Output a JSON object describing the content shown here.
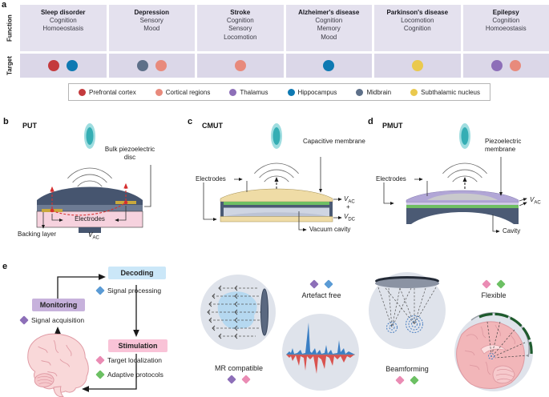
{
  "palette": {
    "prefrontal-cortex": "#c43a3d",
    "cortical-regions": "#e88a7c",
    "thalamus": "#8d6fb8",
    "hippocampus": "#0e79b2",
    "midbrain": "#5e7089",
    "subthalamic-nucleus": "#eac94e"
  },
  "panel_a": {
    "letter": "a",
    "row_labels": {
      "function": "Function",
      "target": "Target"
    },
    "columns": [
      {
        "disease": "Sleep disorder",
        "functions_text": "Cognition\nHomoeostasis",
        "targets": [
          "prefrontal-cortex",
          "hippocampus"
        ]
      },
      {
        "disease": "Depression",
        "functions_text": "Sensory\nMood",
        "targets": [
          "midbrain",
          "cortical-regions"
        ]
      },
      {
        "disease": "Stroke",
        "functions_text": "Cognition\nSensory\nLocomotion",
        "targets": [
          "cortical-regions"
        ]
      },
      {
        "disease": "Alzheimer's disease",
        "functions_text": "Cognition\nMemory\nMood",
        "targets": [
          "hippocampus"
        ]
      },
      {
        "disease": "Parkinson's disease",
        "functions_text": "Locomotion\nCognition",
        "targets": [
          "subthalamic-nucleus"
        ]
      },
      {
        "disease": "Epilepsy",
        "functions_text": "Cognition\nHomoeostasis",
        "targets": [
          "thalamus",
          "cortical-regions"
        ]
      }
    ],
    "legend": [
      {
        "label": "Prefrontal cortex",
        "color": "#c43a3d"
      },
      {
        "label": "Cortical regions",
        "color": "#e88a7c"
      },
      {
        "label": "Thalamus",
        "color": "#8d6fb8"
      },
      {
        "label": "Hippocampus",
        "color": "#0e79b2"
      },
      {
        "label": "Midbrain",
        "color": "#5e7089"
      },
      {
        "label": "Subthalamic nucleus",
        "color": "#eac94e"
      }
    ]
  },
  "panel_b": {
    "letter": "b",
    "title": "PUT",
    "disc_label": "Bulk piezoelectric disc",
    "electrodes_label": "Electrodes",
    "backing_label": "Backing layer",
    "voltage": {
      "base": "V",
      "sub": "AC"
    }
  },
  "panel_c": {
    "letter": "c",
    "title": "CMUT",
    "membrane_label": "Capacitive membrane",
    "electrodes_label": "Electrodes",
    "cavity_label": "Vacuum cavity",
    "voltage_ac": {
      "base": "V",
      "sub": "AC"
    },
    "voltage_plus": "+",
    "voltage_dc": {
      "base": "V",
      "sub": "DC"
    }
  },
  "panel_d": {
    "letter": "d",
    "title": "PMUT",
    "membrane_label": "Piezoelectric membrane",
    "electrodes_label": "Electrodes",
    "cavity_label": "Cavity",
    "voltage": {
      "base": "V",
      "sub": "AC"
    }
  },
  "panel_e": {
    "letter": "e",
    "boxes": {
      "monitoring": "Monitoring",
      "decoding": "Decoding",
      "stimulation": "Stimulation"
    },
    "steps": [
      {
        "label": "Signal acquisition",
        "diamond": "#8d6fb8"
      },
      {
        "label": "Signal processing",
        "diamond": "#5b9bd5"
      },
      {
        "label": "Target localization",
        "diamond": "#ea8cb4"
      },
      {
        "label": "Adaptive protocols",
        "diamond": "#6cc063"
      }
    ],
    "features": [
      {
        "label": "MR compatible",
        "diamonds": [
          "#8d6fb8",
          "#ea8cb4"
        ]
      },
      {
        "label": "Artefact free",
        "diamonds": [
          "#8d6fb8",
          "#5b9bd5"
        ]
      },
      {
        "label": "Beamforming",
        "diamonds": [
          "#ea8cb4",
          "#6cc063"
        ]
      },
      {
        "label": "Flexible",
        "diamonds": [
          "#ea8cb4",
          "#6cc063"
        ]
      }
    ]
  }
}
